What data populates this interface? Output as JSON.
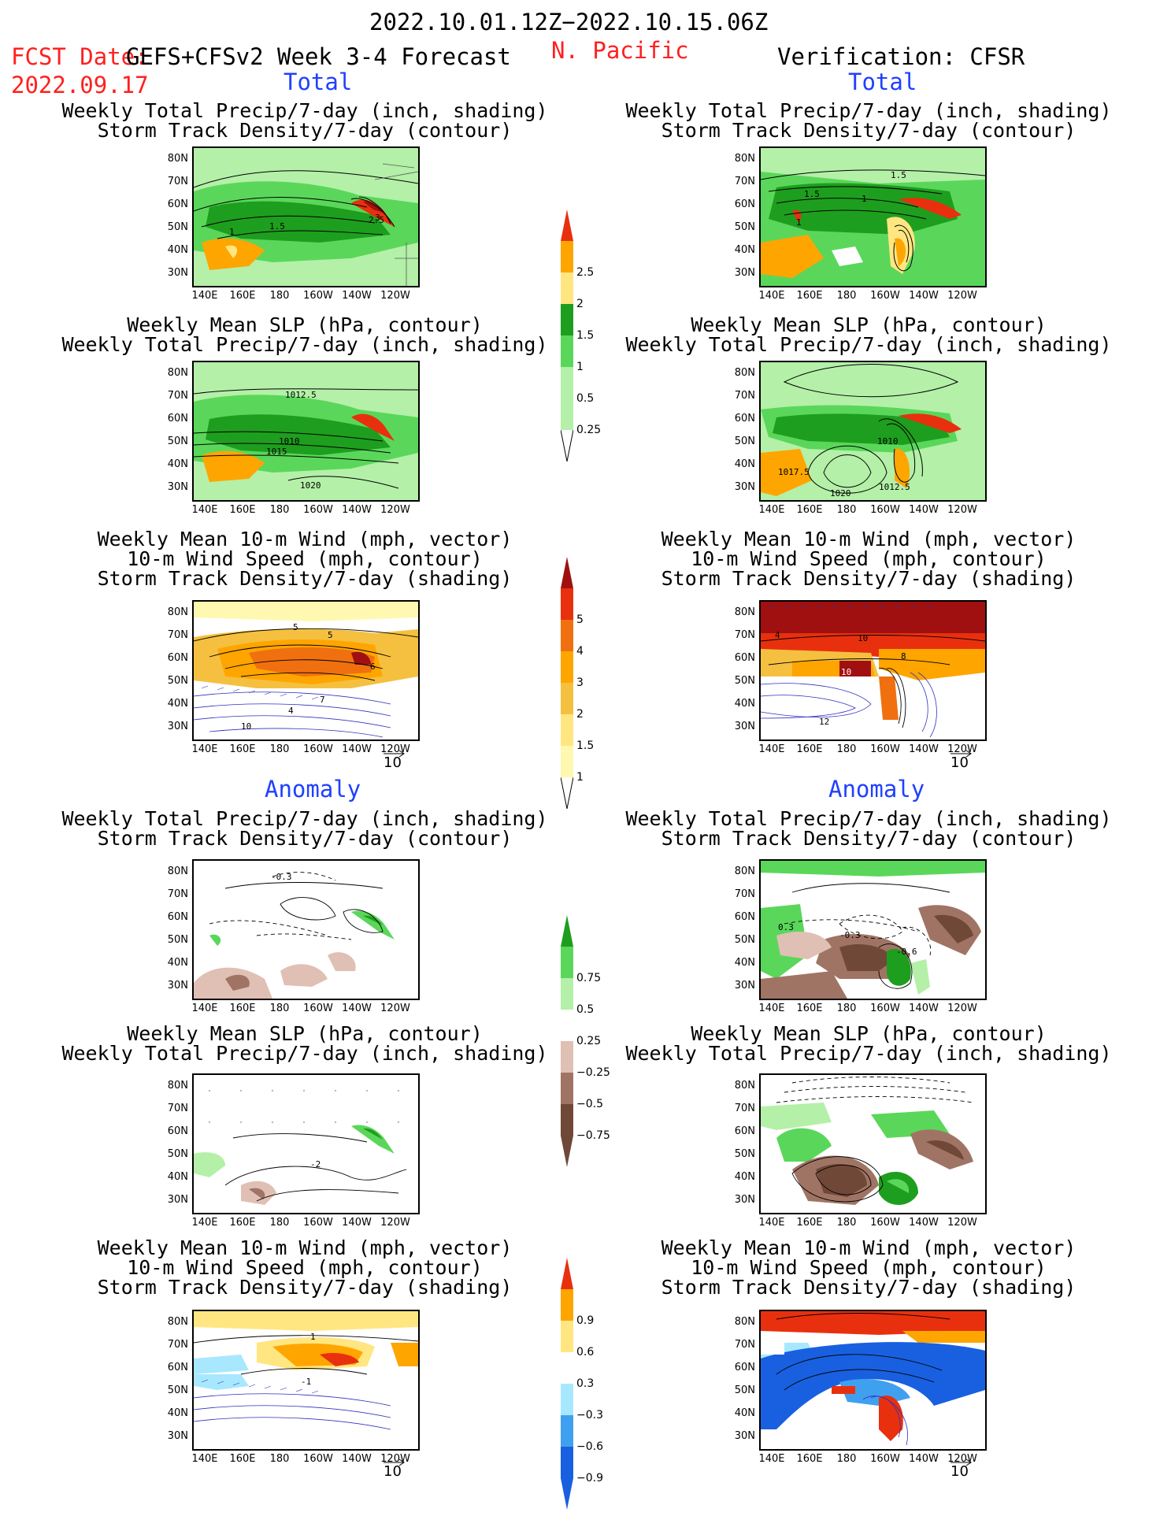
{
  "header": {
    "date_range": "2022.10.01.12Z−2022.10.15.06Z",
    "fcst_label": "FCST Date:",
    "fcst_date": "2022.09.17",
    "model": "GEFS+CFSv2 Week 3-4 Forecast",
    "region": "N. Pacific",
    "verification": "Verification: CFSR"
  },
  "sections": {
    "total_left": "Total",
    "total_right": "Total",
    "anomaly_left": "Anomaly",
    "anomaly_right": "Anomaly"
  },
  "titles": {
    "precip_storm": [
      "Weekly Total Precip/7-day (inch, shading)",
      "Storm Track Density/7-day (contour)"
    ],
    "slp_precip": [
      "Weekly Mean SLP (hPa, contour)",
      "Weekly Total Precip/7-day (inch, shading)"
    ],
    "wind_storm": [
      "Weekly Mean 10-m Wind (mph, vector)",
      "10-m Wind Speed (mph, contour)",
      "Storm Track Density/7-day (shading)"
    ]
  },
  "axes": {
    "lat_labels": [
      "80N",
      "70N",
      "60N",
      "50N",
      "40N",
      "30N"
    ],
    "lon_labels": [
      "140E",
      "160E",
      "180",
      "160W",
      "140W",
      "120W"
    ]
  },
  "vector_ref": "10",
  "colors": {
    "lightgreen": "#b4f0a8",
    "green1": "#5ad75a",
    "green2": "#1e9e1e",
    "yellow": "#ffe680",
    "orange": "#ffa500",
    "red": "#e8300e",
    "darkred": "#a01010",
    "lightbrown": "#e0c0b4",
    "brown": "#a07464",
    "darkbrown": "#704838",
    "pale_yellow": "#fff8b0",
    "gold": "#f5c040",
    "darkorange": "#f07010",
    "lightblue": "#a8e8ff",
    "midblue": "#40a0f0",
    "blue": "#1860e0"
  },
  "colorbars": {
    "precip_total": [
      "2.5",
      "2",
      "1.5",
      "1",
      "0.5",
      "0.25"
    ],
    "storm_total": [
      "5",
      "4",
      "3",
      "2",
      "1.5",
      "1"
    ],
    "precip_anom": [
      "0.75",
      "0.5",
      "0.25",
      "−0.25",
      "−0.5",
      "−0.75"
    ],
    "storm_anom": [
      "0.9",
      "0.6",
      "0.3",
      "−0.3",
      "−0.6",
      "−0.9"
    ]
  },
  "contour_labels": {
    "p1_left": [
      "1",
      "1.5",
      "2.5",
      "3"
    ],
    "p1_right": [
      "1.5",
      "1.5",
      "1",
      "1"
    ],
    "p2_left": [
      "1012.5",
      "1010",
      "1015",
      "1020"
    ],
    "p2_right": [
      "1017.5",
      "1010",
      "1012.5",
      "1020"
    ],
    "p3_left": [
      "5",
      "5",
      "6",
      "7",
      "4",
      "10"
    ],
    "p3_right": [
      "10",
      "10",
      "12",
      "4",
      "8"
    ],
    "p4_left": [
      "-0.3"
    ],
    "p4_right": [
      "0.3",
      "-0.3",
      "-0.6"
    ],
    "p5_left": [
      "-2"
    ],
    "p6_left": [
      "1",
      "-1"
    ]
  }
}
